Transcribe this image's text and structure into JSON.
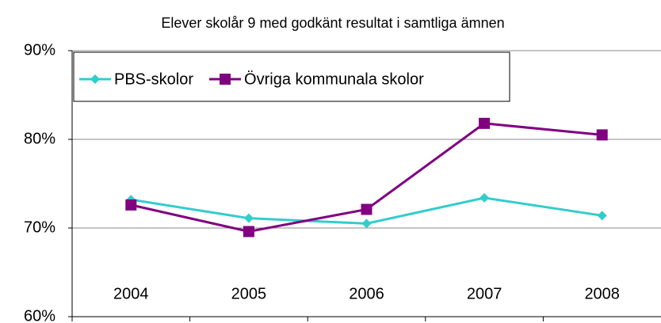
{
  "chart_data": {
    "type": "line",
    "title": "Elever skolår 9 med godkänt resultat i samtliga ämnen",
    "categories": [
      "2004",
      "2005",
      "2006",
      "2007",
      "2008"
    ],
    "series": [
      {
        "name": "PBS-skolor",
        "color": "#33cccc",
        "marker": "diamond",
        "values": [
          73.2,
          71.1,
          70.5,
          73.4,
          71.4
        ]
      },
      {
        "name": "Övriga kommunala skolor",
        "color": "#800080",
        "marker": "square",
        "values": [
          72.6,
          69.6,
          72.1,
          81.8,
          80.5
        ]
      }
    ],
    "ylim": [
      60,
      90
    ],
    "yticks": [
      {
        "value": 60,
        "label": "60%"
      },
      {
        "value": 70,
        "label": "70%"
      },
      {
        "value": 80,
        "label": "80%"
      },
      {
        "value": 90,
        "label": "90%"
      }
    ],
    "grid": true,
    "legend": "top-left"
  }
}
